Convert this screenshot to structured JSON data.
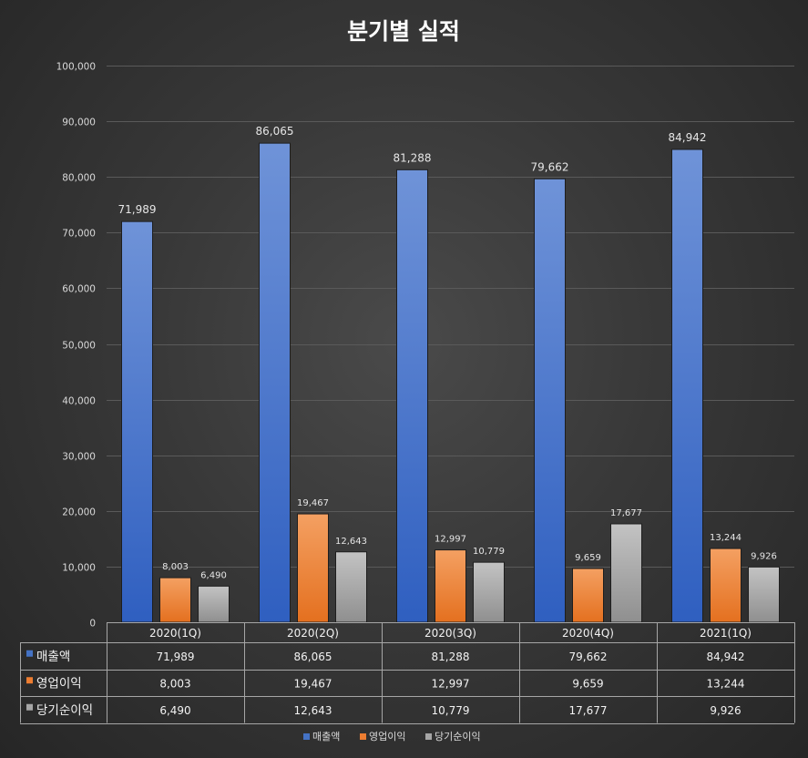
{
  "chart_data": {
    "type": "bar",
    "title": "분기별 실적",
    "categories": [
      "2020(1Q)",
      "2020(2Q)",
      "2020(3Q)",
      "2020(4Q)",
      "2021(1Q)"
    ],
    "series": [
      {
        "name": "매출액",
        "values": [
          71989,
          86065,
          81288,
          79662,
          84942
        ],
        "labels": [
          "71,989",
          "86,065",
          "81,288",
          "79,662",
          "84,942"
        ],
        "color": "#4472c4"
      },
      {
        "name": "영업이익",
        "values": [
          8003,
          19467,
          12997,
          9659,
          13244
        ],
        "labels": [
          "8,003",
          "19,467",
          "12,997",
          "9,659",
          "13,244"
        ],
        "color": "#ed7d31"
      },
      {
        "name": "당기순이익",
        "values": [
          6490,
          12643,
          10779,
          17677,
          9926
        ],
        "labels": [
          "6,490",
          "12,643",
          "10,779",
          "17,677",
          "9,926"
        ],
        "color": "#a5a5a5"
      }
    ],
    "ylim": [
      0,
      100000
    ],
    "yticks": [
      0,
      10000,
      20000,
      30000,
      40000,
      50000,
      60000,
      70000,
      80000,
      90000,
      100000
    ],
    "ytick_labels": [
      "0",
      "10,000",
      "20,000",
      "30,000",
      "40,000",
      "50,000",
      "60,000",
      "70,000",
      "80,000",
      "90,000",
      "100,000"
    ],
    "grid": true,
    "legend": "bottom",
    "data_table": true
  }
}
